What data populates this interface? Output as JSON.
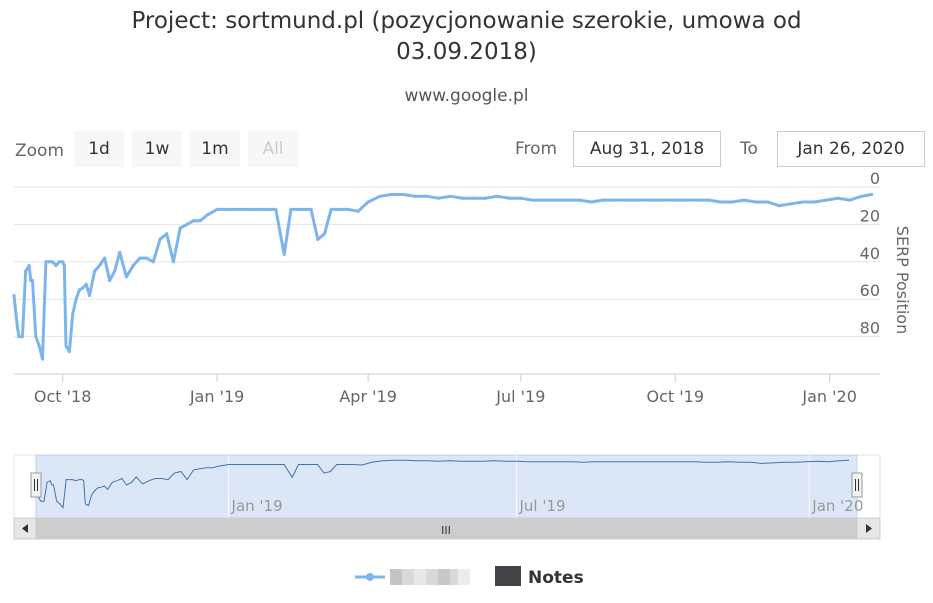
{
  "chart_data": {
    "type": "line",
    "title": "Project: sortmund.pl (pozycjonowanie szerokie, umowa od 03.09.2018)",
    "subtitle": "www.google.pl",
    "ylabel": "SERP Position",
    "y_reversed": true,
    "ylim": [
      0,
      100
    ],
    "yticks": [
      0,
      20,
      40,
      60,
      80
    ],
    "xlim": [
      "2018-09-02",
      "2020-01-31"
    ],
    "xticks": [
      {
        "date": "2018-10-01",
        "label": "Oct '18"
      },
      {
        "date": "2019-01-01",
        "label": "Jan '19"
      },
      {
        "date": "2019-04-01",
        "label": "Apr '19"
      },
      {
        "date": "2019-07-01",
        "label": "Jul '19"
      },
      {
        "date": "2019-10-01",
        "label": "Oct '19"
      },
      {
        "date": "2020-01-01",
        "label": "Jan '20"
      }
    ],
    "navigator_labels": [
      {
        "date": "2019-01-01",
        "label": "Jan '19"
      },
      {
        "date": "2019-07-01",
        "label": "Jul '19"
      },
      {
        "date": "2020-01-01",
        "label": "Jan '20"
      }
    ],
    "grid": true,
    "legend": "bottom-center",
    "series": [
      {
        "color": "#7cb5ec",
        "x": [
          "2018-09-02",
          "2018-09-04",
          "2018-09-05",
          "2018-09-07",
          "2018-09-09",
          "2018-09-11",
          "2018-09-12",
          "2018-09-13",
          "2018-09-15",
          "2018-09-17",
          "2018-09-19",
          "2018-09-21",
          "2018-09-23",
          "2018-09-25",
          "2018-09-27",
          "2018-09-29",
          "2018-10-01",
          "2018-10-02",
          "2018-10-03",
          "2018-10-05",
          "2018-10-07",
          "2018-10-09",
          "2018-10-11",
          "2018-10-13",
          "2018-10-15",
          "2018-10-17",
          "2018-10-20",
          "2018-10-23",
          "2018-10-26",
          "2018-10-29",
          "2018-11-01",
          "2018-11-04",
          "2018-11-08",
          "2018-11-12",
          "2018-11-16",
          "2018-11-20",
          "2018-11-24",
          "2018-11-28",
          "2018-12-02",
          "2018-12-06",
          "2018-12-10",
          "2018-12-14",
          "2018-12-18",
          "2018-12-22",
          "2018-12-26",
          "2019-01-01",
          "2019-01-08",
          "2019-01-15",
          "2019-01-22",
          "2019-01-29",
          "2019-02-01",
          "2019-02-05",
          "2019-02-10",
          "2019-02-14",
          "2019-02-18",
          "2019-02-22",
          "2019-02-26",
          "2019-03-02",
          "2019-03-06",
          "2019-03-10",
          "2019-03-14",
          "2019-03-20",
          "2019-03-26",
          "2019-04-01",
          "2019-04-08",
          "2019-04-15",
          "2019-04-22",
          "2019-04-29",
          "2019-05-06",
          "2019-05-13",
          "2019-05-20",
          "2019-05-27",
          "2019-06-03",
          "2019-06-10",
          "2019-06-17",
          "2019-06-24",
          "2019-07-01",
          "2019-07-08",
          "2019-07-15",
          "2019-07-22",
          "2019-07-29",
          "2019-08-05",
          "2019-08-12",
          "2019-08-19",
          "2019-08-26",
          "2019-09-02",
          "2019-09-09",
          "2019-09-16",
          "2019-09-23",
          "2019-09-30",
          "2019-10-07",
          "2019-10-14",
          "2019-10-21",
          "2019-10-28",
          "2019-11-04",
          "2019-11-11",
          "2019-11-18",
          "2019-11-25",
          "2019-12-02",
          "2019-12-09",
          "2019-12-16",
          "2019-12-23",
          "2019-12-30",
          "2020-01-06",
          "2020-01-13",
          "2020-01-20",
          "2020-01-26"
        ],
        "y": [
          58,
          75,
          80,
          80,
          45,
          42,
          50,
          50,
          80,
          85,
          92,
          40,
          40,
          40,
          42,
          40,
          40,
          42,
          85,
          88,
          68,
          60,
          55,
          54,
          52,
          58,
          45,
          42,
          38,
          50,
          45,
          35,
          48,
          42,
          38,
          38,
          40,
          28,
          25,
          40,
          22,
          20,
          18,
          18,
          15,
          12,
          12,
          12,
          12,
          12,
          12,
          12,
          36,
          12,
          12,
          12,
          12,
          28,
          25,
          12,
          12,
          12,
          13,
          8,
          5,
          4,
          4,
          5,
          5,
          6,
          5,
          6,
          6,
          6,
          5,
          6,
          6,
          7,
          7,
          7,
          7,
          7,
          8,
          7,
          7,
          7,
          7,
          7,
          7,
          7,
          7,
          7,
          7,
          8,
          8,
          7,
          8,
          8,
          10,
          9,
          8,
          8,
          7,
          6,
          7,
          5,
          4
        ]
      }
    ]
  },
  "controls": {
    "zoom_label": "Zoom",
    "buttons": [
      "1d",
      "1w",
      "1m",
      "All"
    ],
    "from_label": "From",
    "from_value": "Aug 31, 2018",
    "to_label": "To",
    "to_value": "Jan 26, 2020"
  },
  "navigator": {
    "scrollbar_grip": "III"
  },
  "legend": {
    "notes_label": "Notes",
    "notes_color": "#434348",
    "series_color": "#7cb5ec"
  }
}
